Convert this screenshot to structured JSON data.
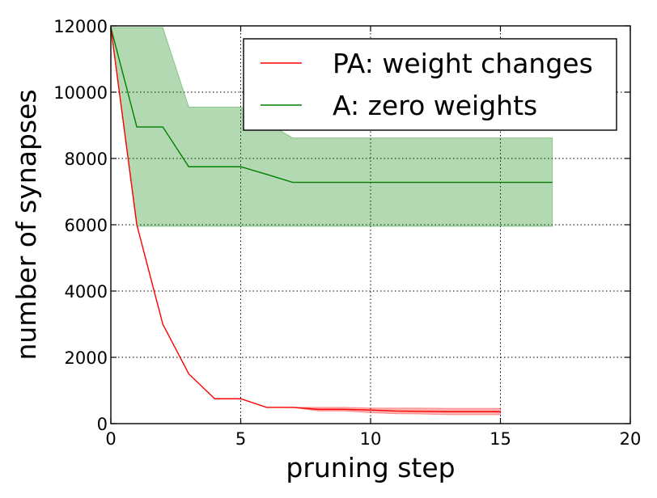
{
  "chart_data": {
    "type": "line",
    "title": "",
    "xlabel": "pruning step",
    "ylabel": "number of synapses",
    "xlim": [
      0,
      20
    ],
    "ylim": [
      0,
      12000
    ],
    "xticks": [
      0,
      5,
      10,
      15,
      20
    ],
    "yticks": [
      0,
      2000,
      4000,
      6000,
      8000,
      10000,
      12000
    ],
    "grid": true,
    "legend_position": "top-right",
    "series": [
      {
        "name": "PA: weight changes",
        "color": "#ff0000",
        "band_color": "#ff0000",
        "x": [
          0,
          1,
          2,
          3,
          4,
          5,
          6,
          7,
          8,
          9,
          10,
          11,
          12,
          13,
          14,
          15
        ],
        "values": [
          11950,
          6000,
          3000,
          1500,
          750,
          750,
          490,
          490,
          430,
          430,
          410,
          380,
          370,
          360,
          360,
          360
        ],
        "lower": [
          11950,
          6000,
          3000,
          1500,
          750,
          750,
          490,
          490,
          380,
          380,
          330,
          300,
          290,
          270,
          270,
          270
        ],
        "upper": [
          11950,
          6000,
          3000,
          1500,
          750,
          750,
          490,
          490,
          490,
          490,
          470,
          470,
          470,
          460,
          460,
          460
        ]
      },
      {
        "name": "A: zero weights",
        "color": "#008000",
        "band_color": "#008000",
        "x": [
          0,
          1,
          2,
          3,
          4,
          5,
          6,
          7,
          8,
          9,
          10,
          11,
          12,
          13,
          14,
          15,
          16,
          17
        ],
        "values": [
          11950,
          8950,
          8950,
          7750,
          7750,
          7750,
          7520,
          7280,
          7280,
          7280,
          7280,
          7280,
          7280,
          7280,
          7280,
          7280,
          7280,
          7280
        ],
        "lower": [
          11950,
          5950,
          5950,
          5950,
          5950,
          5950,
          5950,
          5950,
          5950,
          5950,
          5950,
          5950,
          5950,
          5950,
          5950,
          5950,
          5950,
          5950
        ],
        "upper": [
          11950,
          11950,
          11950,
          9550,
          9550,
          9550,
          9080,
          8620,
          8620,
          8620,
          8620,
          8620,
          8620,
          8620,
          8620,
          8620,
          8620,
          8620
        ]
      }
    ]
  }
}
